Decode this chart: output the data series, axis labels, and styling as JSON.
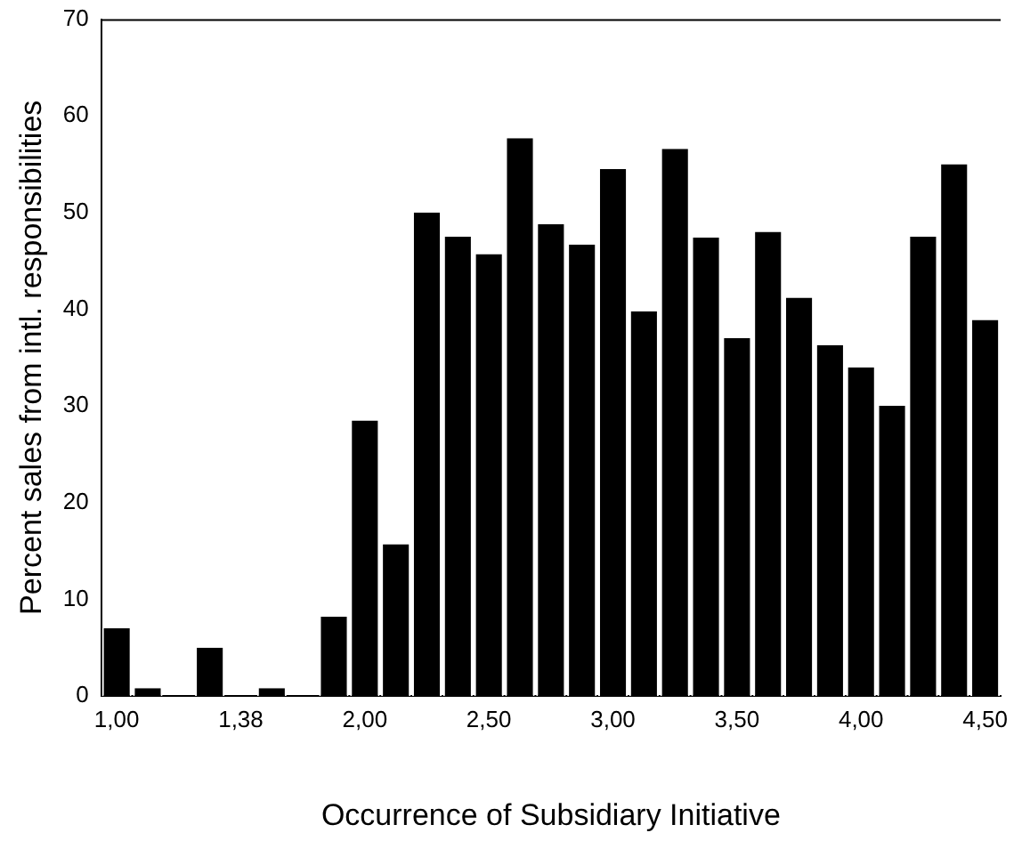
{
  "chart_data": {
    "type": "bar",
    "xlabel": "Occurrence of Subsidiary Initiative",
    "ylabel": "Percent sales from intl. responsibilities",
    "categories": [
      "1,00",
      null,
      null,
      null,
      "1,38",
      null,
      null,
      null,
      "2,00",
      null,
      null,
      null,
      "2,50",
      null,
      null,
      null,
      "3,00",
      null,
      null,
      null,
      "3,50",
      null,
      null,
      null,
      "4,00",
      null,
      null,
      null,
      "4,50"
    ],
    "values": [
      7,
      0.8,
      null,
      5,
      null,
      0.8,
      null,
      8.2,
      28.5,
      15.7,
      50,
      47.5,
      45.7,
      57.7,
      48.8,
      46.7,
      54.5,
      39.8,
      56.6,
      47.4,
      37,
      48,
      41.2,
      36.3,
      34,
      30,
      47.5,
      55,
      38.9
    ],
    "color": "#000000",
    "ylim": [
      0,
      70
    ],
    "yticks": [
      0,
      10,
      20,
      30,
      40,
      50,
      60,
      70
    ],
    "grid": false,
    "legend": false
  }
}
